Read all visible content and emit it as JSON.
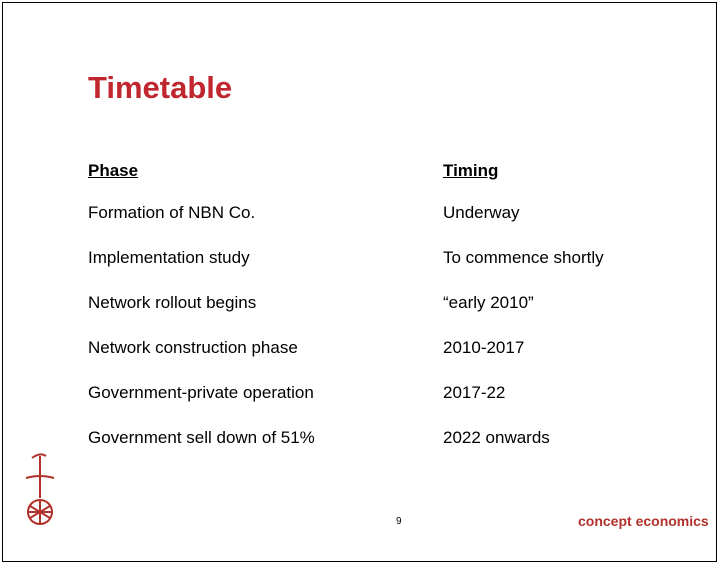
{
  "header": {
    "title": "Timetable"
  },
  "table": {
    "columns": [
      "Phase",
      "Timing"
    ],
    "rows": [
      [
        "Formation of NBN Co.",
        "Underway"
      ],
      [
        "Implementation study",
        "To commence shortly"
      ],
      [
        "Network rollout begins",
        "“early 2010”"
      ],
      [
        "Network construction phase",
        "2010-2017"
      ],
      [
        "Government-private operation",
        "2017-22"
      ],
      [
        "Government sell down of 51%",
        "2022 onwards"
      ]
    ]
  },
  "footer": {
    "page_number": "9",
    "brand": "concept economics"
  }
}
